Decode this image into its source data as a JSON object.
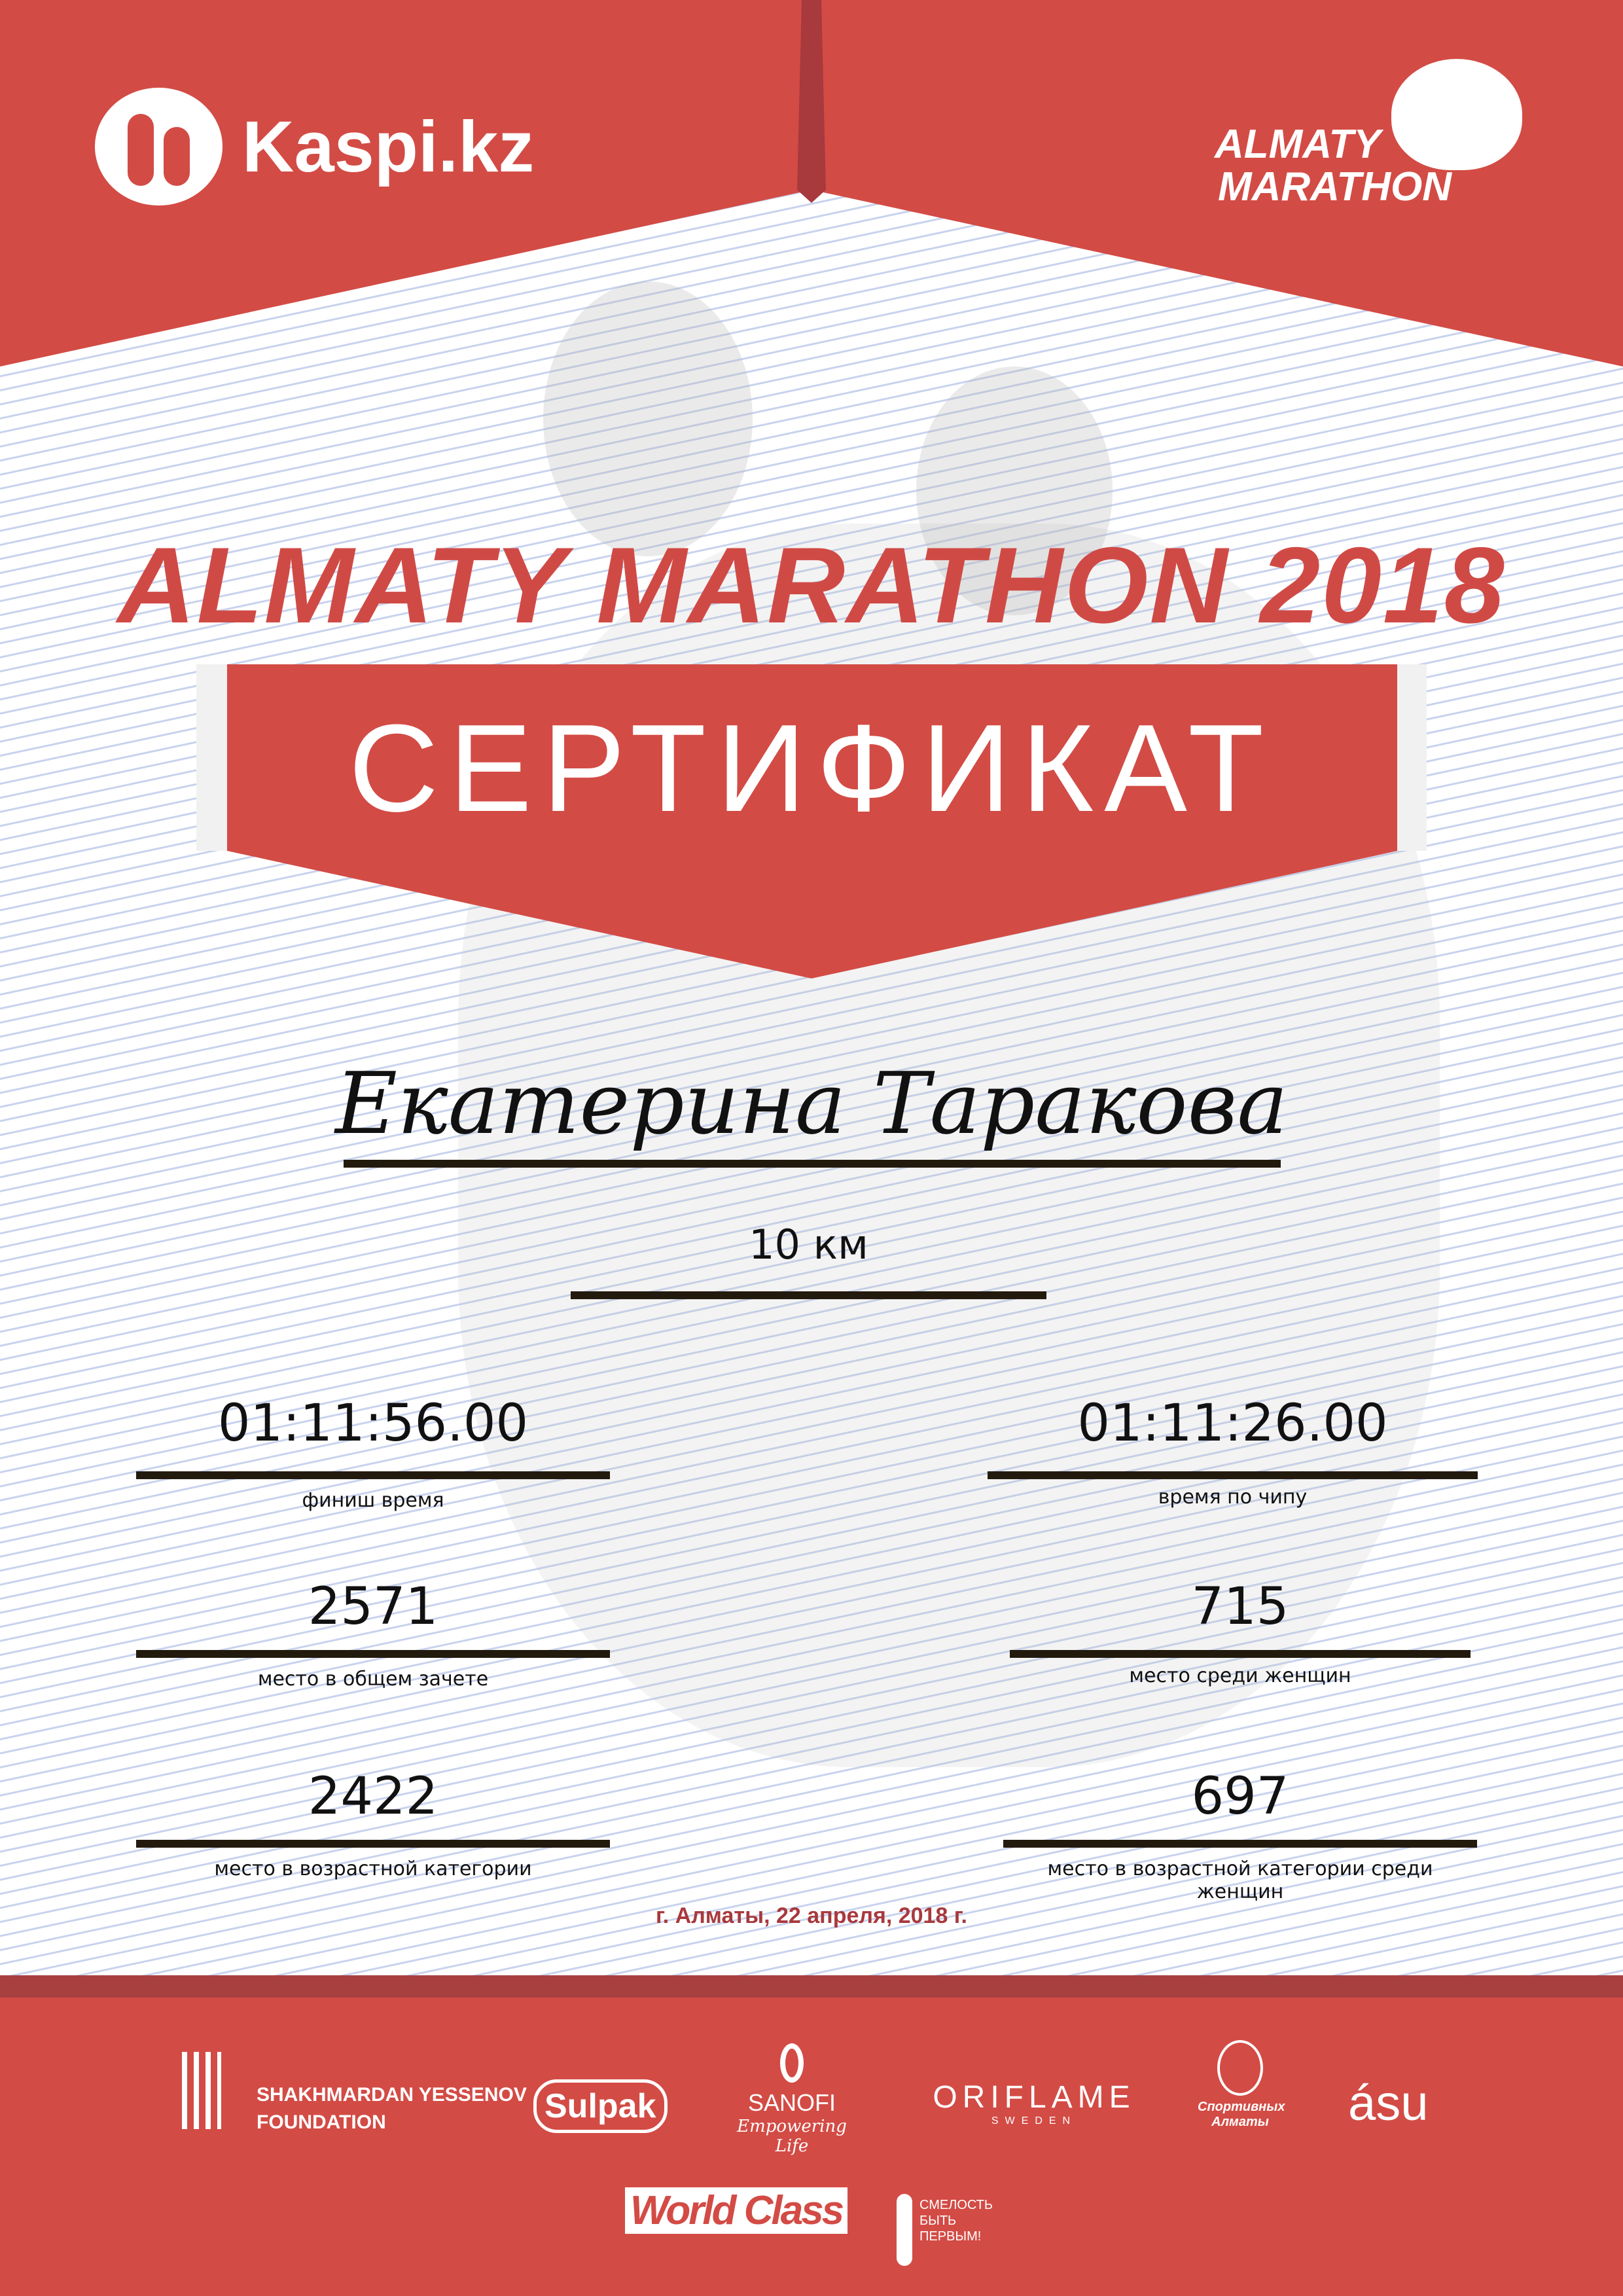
{
  "header": {
    "left_logo": "Kaspi.kz",
    "right_logo": [
      "ALMATY",
      "MARATHON"
    ]
  },
  "title": "ALMATY MARATHON 2018",
  "banner": "СЕРТИФИКАТ",
  "participant_name": "Екатерина Таракова",
  "distance": "10 км",
  "results": {
    "finish_time": {
      "value": "01:11:56.00",
      "label": "финиш время"
    },
    "chip_time": {
      "value": "01:11:26.00",
      "label": "время по чипу"
    },
    "overall_place": {
      "value": "2571",
      "label": "место в общем зачете"
    },
    "women_place": {
      "value": "715",
      "label": "место среди женщин"
    },
    "age_place": {
      "value": "2422",
      "label": "место в возрастной категории"
    },
    "age_women_place": {
      "value": "697",
      "label": "место в возрастной категории среди женщин"
    }
  },
  "date": "г. Алматы, 22 апреля, 2018 г.",
  "sponsors": {
    "yessenov": [
      "SHAKHMARDAN YESSENOV",
      "FOUNDATION"
    ],
    "sulpak": "Sulpak",
    "sanofi": [
      "SANOFI",
      "Empowering Life"
    ],
    "oriflame": [
      "ORIFLAME",
      "SWEDEN"
    ],
    "sport_almaty": [
      "Спортивных",
      "Алматы"
    ],
    "asu": "ásu",
    "worldclass": "World Class",
    "smelost": [
      "СМЕЛОСТЬ",
      "БЫТЬ",
      "ПЕРВЫМ!"
    ]
  },
  "colors": {
    "brand_red": "#d34b45",
    "dark_red": "#a8393d",
    "rule": "#231a0e"
  }
}
